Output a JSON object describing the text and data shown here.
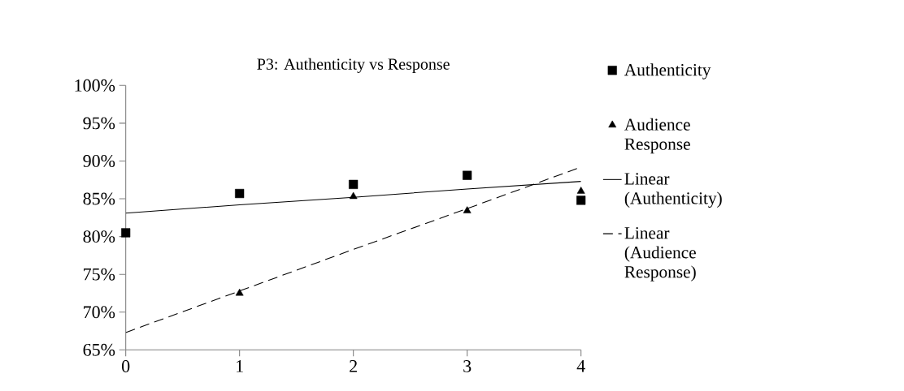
{
  "chart_data": {
    "type": "scatter",
    "title": "P3: Authenticity vs Response",
    "x": [
      0,
      1,
      2,
      3,
      4
    ],
    "series": [
      {
        "name": "Authenticity",
        "color": "#000000",
        "marker": "square",
        "values": [
          80.5,
          85.7,
          86.9,
          88.1,
          84.8
        ]
      },
      {
        "name": "Audience Response",
        "color": "#000000",
        "marker": "triangle",
        "values": [
          null,
          72.5,
          85.3,
          83.4,
          86.0
        ]
      },
      {
        "name": "Linear (Authenticity)",
        "type": "line",
        "color": "#000000",
        "marker": "none",
        "line_style": "solid",
        "values": [
          83.1,
          84.2,
          85.2,
          86.3,
          87.3
        ]
      },
      {
        "name": "Linear (Audience Response)",
        "type": "line",
        "color": "#000000",
        "marker": "none",
        "line_style": "dashed",
        "values": [
          67.3,
          72.8,
          78.3,
          83.7,
          89.2
        ]
      }
    ],
    "xlim": [
      0,
      4
    ],
    "xticks": [
      0,
      1,
      2,
      3,
      4
    ],
    "ylim": [
      65,
      100
    ],
    "yticks": [
      {
        "value": 65,
        "label": "65%"
      },
      {
        "value": 70,
        "label": "70%"
      },
      {
        "value": 75,
        "label": "75%"
      },
      {
        "value": 80,
        "label": "80%"
      },
      {
        "value": 85,
        "label": "85%"
      },
      {
        "value": 90,
        "label": "90%"
      },
      {
        "value": 95,
        "label": "95%"
      },
      {
        "value": 100,
        "label": "100%"
      }
    ],
    "grid": false,
    "legend": "right"
  }
}
